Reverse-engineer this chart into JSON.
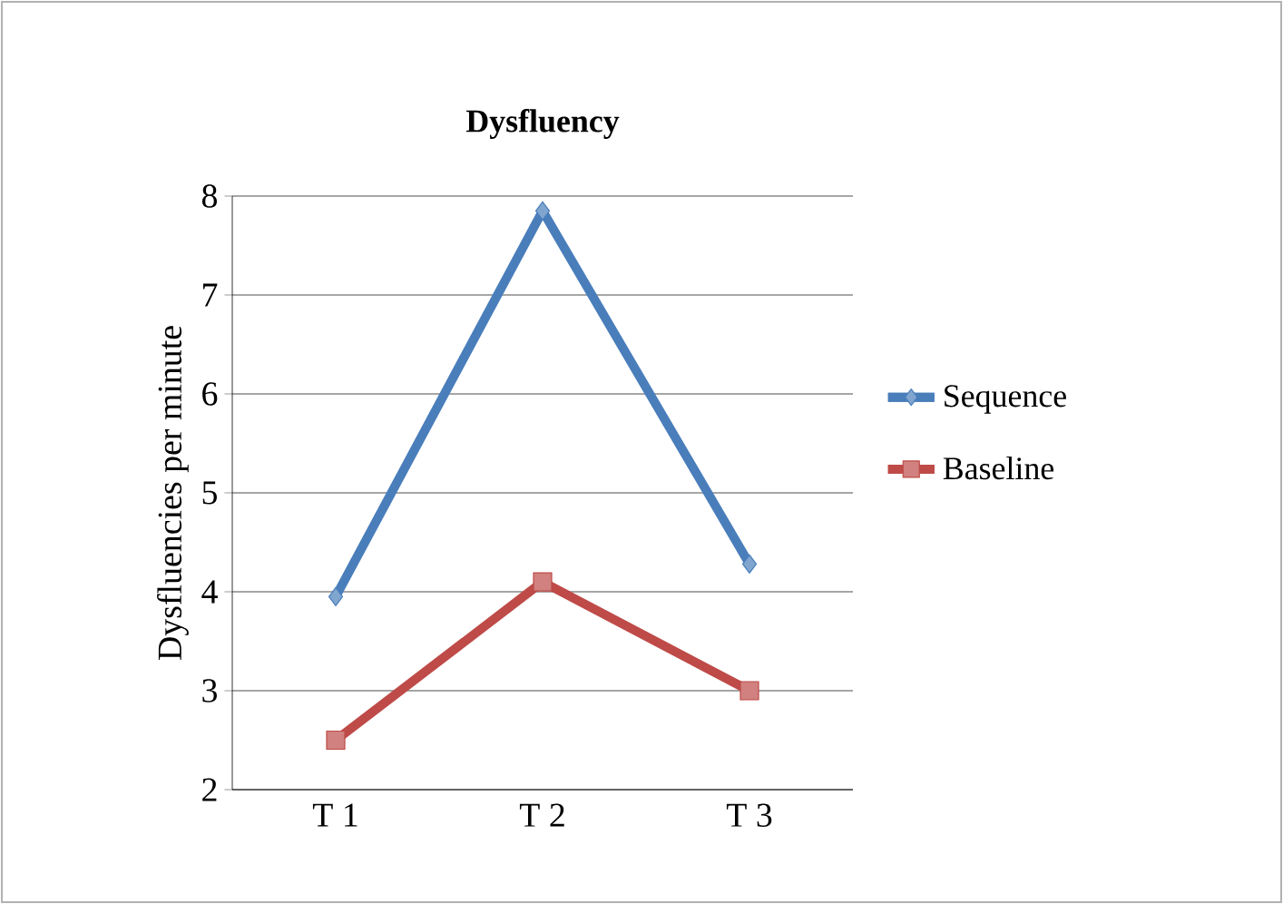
{
  "chart_data": {
    "type": "line",
    "title": "Dysfluency",
    "ylabel": "Dysfluencies per minute",
    "categories": [
      "T 1",
      "T 2",
      "T 3"
    ],
    "series": [
      {
        "name": "Sequence",
        "color": "#4a7ebb",
        "marker": "diamond",
        "values": [
          3.95,
          7.85,
          4.28
        ]
      },
      {
        "name": "Baseline",
        "color": "#be4b48",
        "marker": "square",
        "values": [
          2.5,
          4.1,
          3.0
        ]
      }
    ],
    "ylim": [
      2,
      8
    ],
    "yticks": [
      2,
      3,
      4,
      5,
      6,
      7,
      8
    ],
    "grid": "y",
    "legend": "right"
  }
}
